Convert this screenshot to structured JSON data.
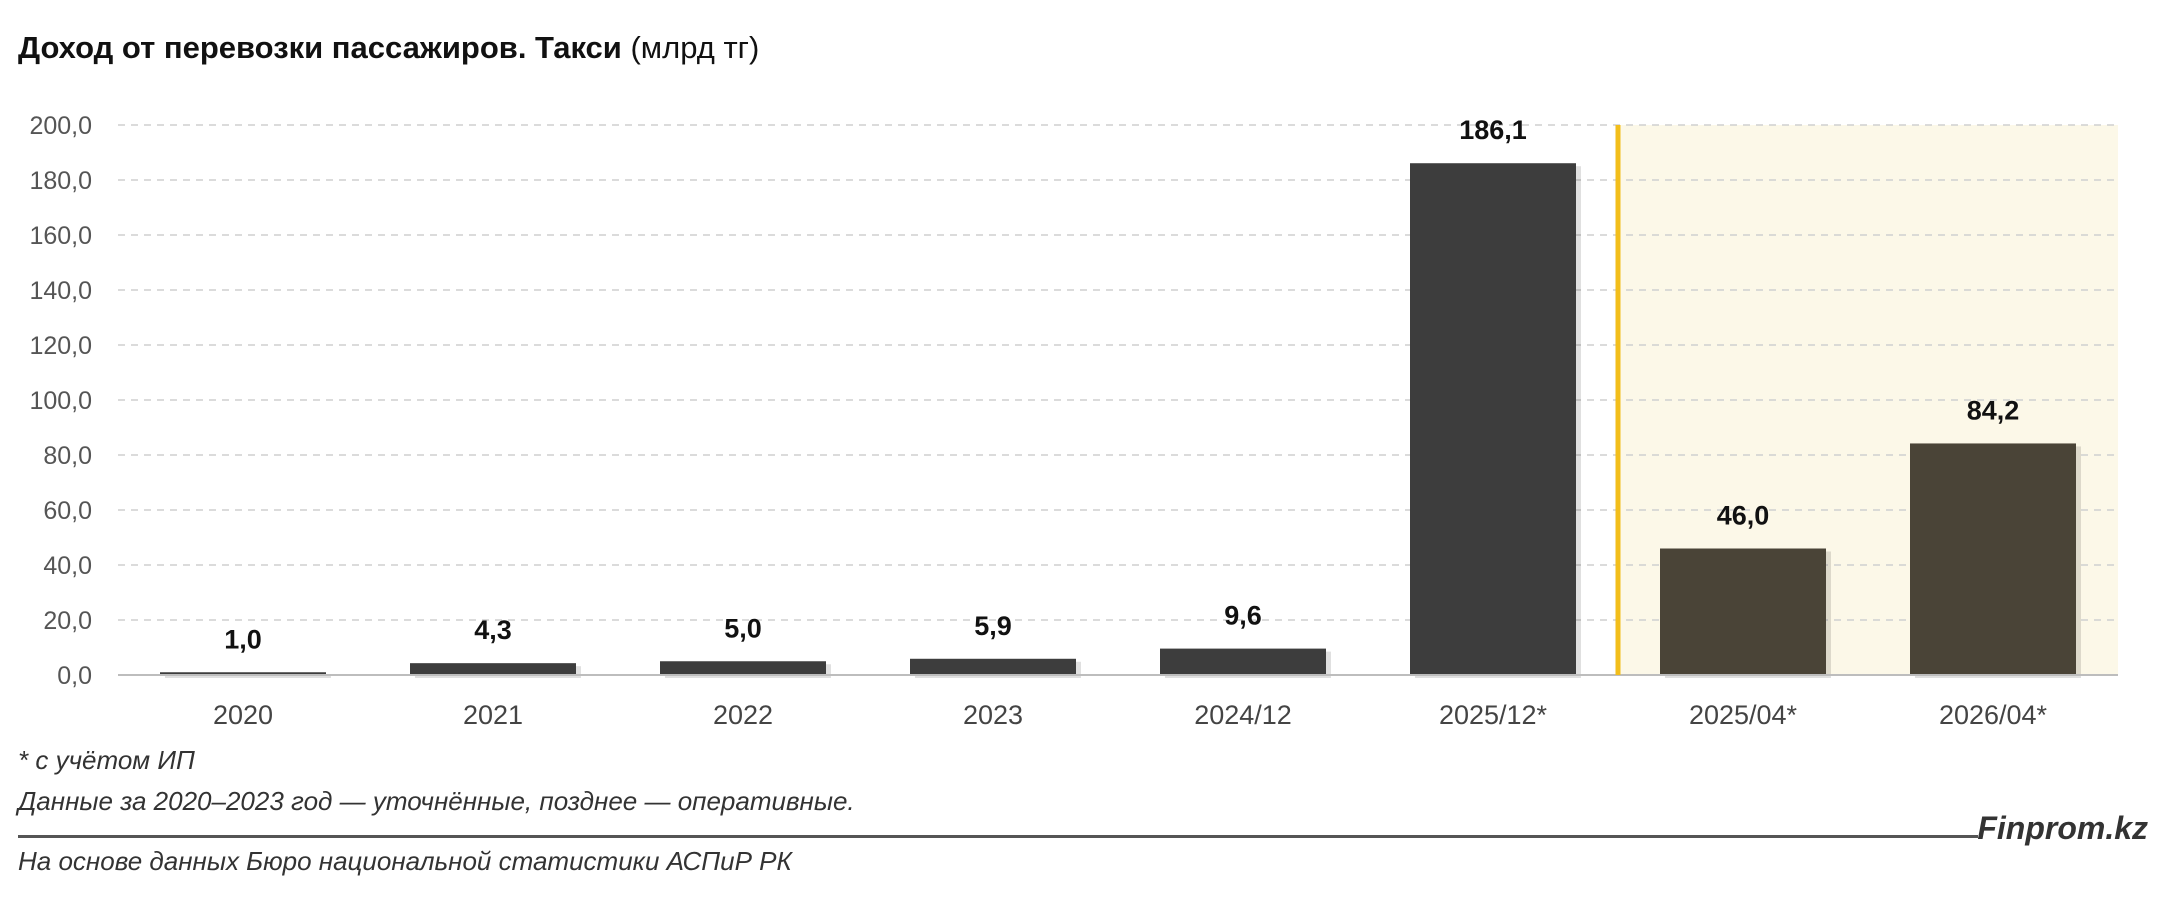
{
  "title": {
    "main": "Доход от перевозки пассажиров. Такси",
    "unit": "(млрд тг)"
  },
  "colors": {
    "bar_main": "#3d3d3d",
    "bar_highlight": "#4a4437",
    "highlight_bg": "#fcf8e8",
    "divider": "#f2be1b",
    "grid": "#cfcfcf"
  },
  "chart_data": {
    "type": "bar",
    "categories": [
      "2020",
      "2021",
      "2022",
      "2023",
      "2024/12",
      "2025/12*",
      "2025/04*",
      "2026/04*"
    ],
    "values": [
      1.0,
      4.3,
      5.0,
      5.9,
      9.6,
      186.1,
      46.0,
      84.2
    ],
    "value_labels": [
      "1,0",
      "4,3",
      "5,0",
      "5,9",
      "9,6",
      "186,1",
      "46,0",
      "84,2"
    ],
    "yticks": [
      "0,0",
      "20,0",
      "40,0",
      "60,0",
      "80,0",
      "100,0",
      "120,0",
      "140,0",
      "160,0",
      "180,0",
      "200,0"
    ],
    "ylim": [
      0,
      200
    ],
    "highlighted_categories": [
      "2025/04*",
      "2026/04*"
    ],
    "grid": true
  },
  "notes": {
    "footnote": "* с учётом ИП",
    "data_note": "Данные за 2020–2023 год — уточнённые, позднее — оперативные.",
    "source": "На основе данных Бюро национальной статистики АСПиР РК"
  },
  "brand": "Finprom.kz"
}
